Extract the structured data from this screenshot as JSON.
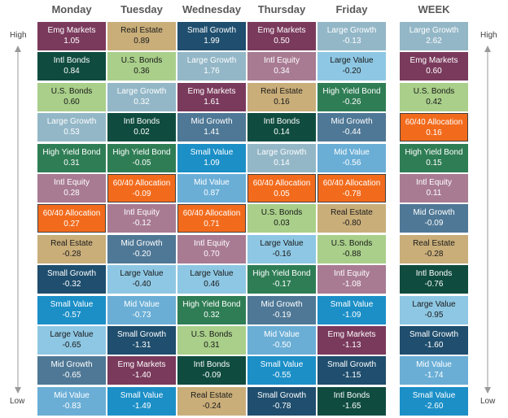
{
  "chart_data": {
    "type": "table",
    "columns": [
      "Monday",
      "Tuesday",
      "Wednesday",
      "Thursday",
      "Friday",
      "WEEK"
    ],
    "axis_labels": {
      "top": "High",
      "bottom": "Low"
    },
    "rows": [
      [
        [
          "Emg Markets",
          "1.05"
        ],
        [
          "Real Estate",
          "0.89"
        ],
        [
          "Small Growth",
          "1.99"
        ],
        [
          "Emg Markets",
          "0.50"
        ],
        [
          "Large Growth",
          "-0.13"
        ],
        [
          "Large Growth",
          "2.62"
        ]
      ],
      [
        [
          "Intl Bonds",
          "0.84"
        ],
        [
          "U.S. Bonds",
          "0.36"
        ],
        [
          "Large Growth",
          "1.76"
        ],
        [
          "Intl Equity",
          "0.34"
        ],
        [
          "Large Value",
          "-0.20"
        ],
        [
          "Emg Markets",
          "0.60"
        ]
      ],
      [
        [
          "U.S. Bonds",
          "0.60"
        ],
        [
          "Large Growth",
          "0.32"
        ],
        [
          "Emg Markets",
          "1.61"
        ],
        [
          "Real Estate",
          "0.16"
        ],
        [
          "High Yield Bond",
          "-0.26"
        ],
        [
          "U.S. Bonds",
          "0.42"
        ]
      ],
      [
        [
          "Large Growth",
          "0.53"
        ],
        [
          "Intl Bonds",
          "0.02"
        ],
        [
          "Mid Growth",
          "1.41"
        ],
        [
          "Intl Bonds",
          "0.14"
        ],
        [
          "Mid Growth",
          "-0.44"
        ],
        [
          "60/40 Allocation",
          "0.16"
        ]
      ],
      [
        [
          "High Yield Bond",
          "0.31"
        ],
        [
          "High Yield Bond",
          "-0.05"
        ],
        [
          "Small Value",
          "1.09"
        ],
        [
          "Large Growth",
          "0.14"
        ],
        [
          "Mid Value",
          "-0.56"
        ],
        [
          "High Yield Bond",
          "0.15"
        ]
      ],
      [
        [
          "Intl Equity",
          "0.28"
        ],
        [
          "60/40 Allocation",
          "-0.09"
        ],
        [
          "Mid Value",
          "0.87"
        ],
        [
          "60/40 Allocation",
          "0.05"
        ],
        [
          "60/40 Allocation",
          "-0.78"
        ],
        [
          "Intl Equity",
          "0.11"
        ]
      ],
      [
        [
          "60/40 Allocation",
          "0.27"
        ],
        [
          "Intl Equity",
          "-0.12"
        ],
        [
          "60/40 Allocation",
          "0.71"
        ],
        [
          "U.S. Bonds",
          "0.03"
        ],
        [
          "Real Estate",
          "-0.80"
        ],
        [
          "Mid Growth",
          "-0.09"
        ]
      ],
      [
        [
          "Real Estate",
          "-0.28"
        ],
        [
          "Mid Growth",
          "-0.20"
        ],
        [
          "Intl Equity",
          "0.70"
        ],
        [
          "Large Value",
          "-0.16"
        ],
        [
          "U.S. Bonds",
          "-0.88"
        ],
        [
          "Real Estate",
          "-0.28"
        ]
      ],
      [
        [
          "Small Growth",
          "-0.32"
        ],
        [
          "Large Value",
          "-0.40"
        ],
        [
          "Large Value",
          "0.46"
        ],
        [
          "High Yield Bond",
          "-0.17"
        ],
        [
          "Intl Equity",
          "-1.08"
        ],
        [
          "Intl Bonds",
          "-0.76"
        ]
      ],
      [
        [
          "Small Value",
          "-0.57"
        ],
        [
          "Mid Value",
          "-0.73"
        ],
        [
          "High Yield Bond",
          "0.32"
        ],
        [
          "Mid Growth",
          "-0.19"
        ],
        [
          "Small Value",
          "-1.09"
        ],
        [
          "Large Value",
          "-0.95"
        ]
      ],
      [
        [
          "Large Value",
          "-0.65"
        ],
        [
          "Small Growth",
          "-1.31"
        ],
        [
          "U.S. Bonds",
          "0.31"
        ],
        [
          "Mid Value",
          "-0.50"
        ],
        [
          "Emg Markets",
          "-1.13"
        ],
        [
          "Small Growth",
          "-1.60"
        ]
      ],
      [
        [
          "Mid Growth",
          "-0.65"
        ],
        [
          "Emg Markets",
          "-1.40"
        ],
        [
          "Intl Bonds",
          "-0.09"
        ],
        [
          "Small Value",
          "-0.55"
        ],
        [
          "Small Growth",
          "-1.15"
        ],
        [
          "Mid Value",
          "-1.74"
        ]
      ],
      [
        [
          "Mid Value",
          "-0.83"
        ],
        [
          "Small Value",
          "-1.49"
        ],
        [
          "Real Estate",
          "-0.24"
        ],
        [
          "Small Growth",
          "-0.78"
        ],
        [
          "Intl Bonds",
          "-1.65"
        ],
        [
          "Small Value",
          "-2.60"
        ]
      ]
    ],
    "asset_colors": {
      "Emg Markets": "#7a3a5c",
      "Intl Bonds": "#0f4c3f",
      "U.S. Bonds": "#a9cf8a",
      "Large Growth": "#93b7c7",
      "High Yield Bond": "#2f7d55",
      "Intl Equity": "#a87b93",
      "60/40 Allocation": "#f26b1c",
      "Real Estate": "#c9ae7a",
      "Small Growth": "#1f4e6e",
      "Small Value": "#1c8fc7",
      "Large Value": "#8ec7e3",
      "Mid Growth": "#4f7896",
      "Mid Value": "#6aaed6"
    },
    "arrow_color": "#9a9a9a"
  }
}
